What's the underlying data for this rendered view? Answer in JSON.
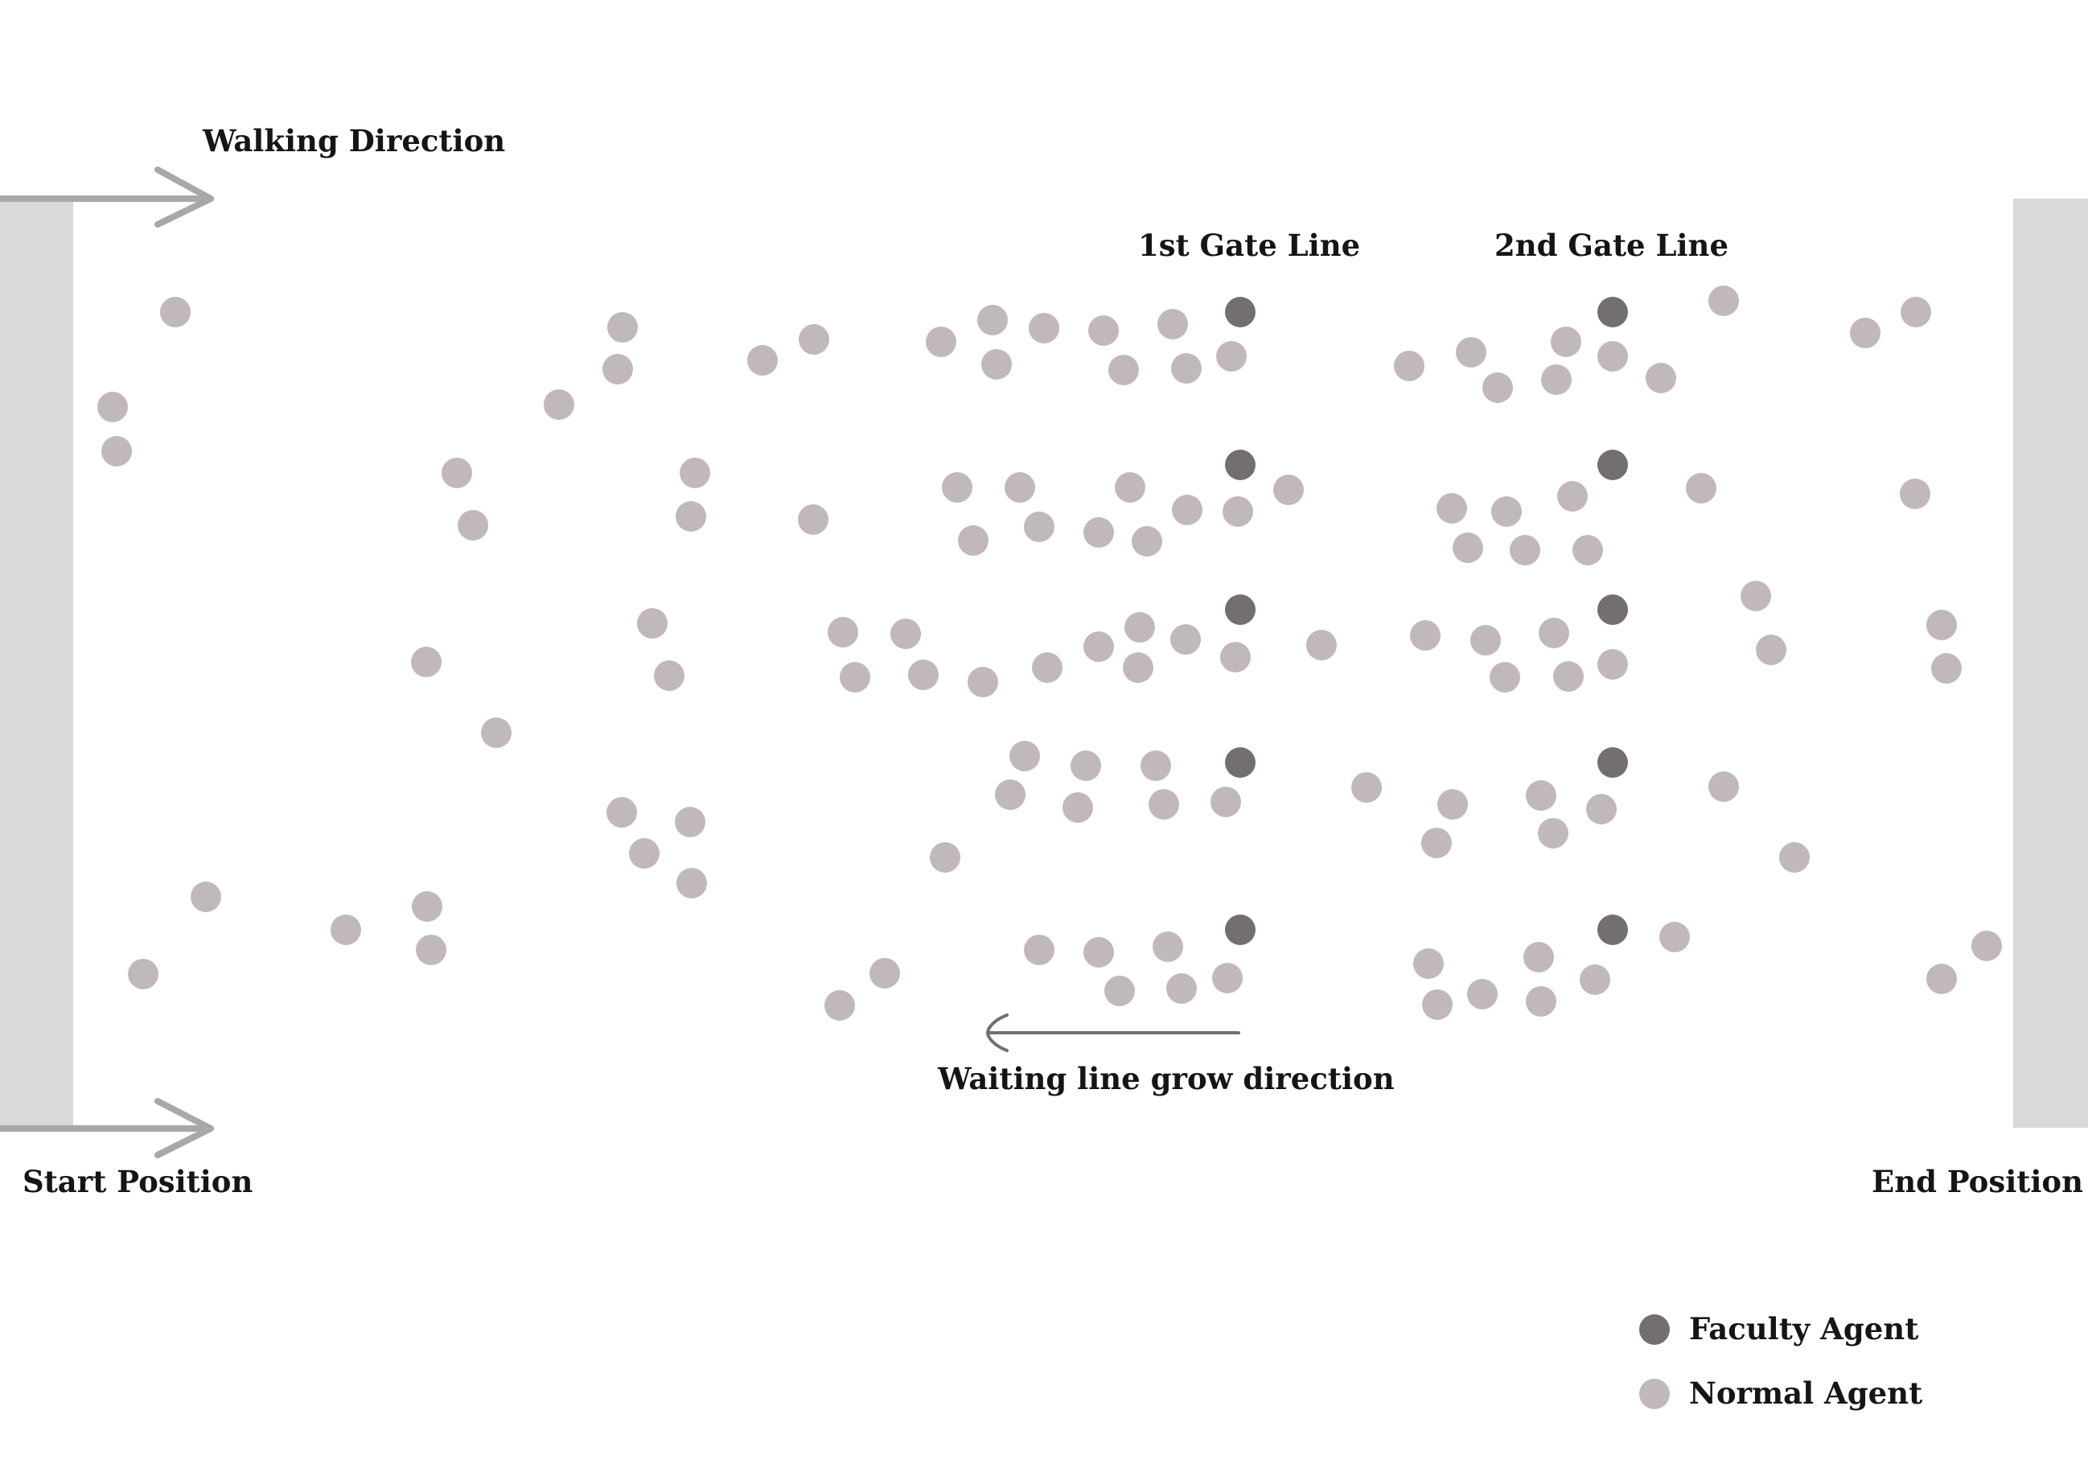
{
  "labels": {
    "walking_direction": "Walking Direction",
    "gate_line_1": "1st Gate Line",
    "gate_line_2": "2nd Gate Line",
    "waiting_line": "Waiting line grow direction",
    "start_position": "Start Position",
    "end_position": "End Position"
  },
  "legend": {
    "faculty": "Faculty Agent",
    "normal": "Normal Agent"
  },
  "colors": {
    "faculty_agent": "#736e70",
    "normal_agent": "#c0b8bb",
    "wall": "#d9d9d9",
    "arrow_gray": "#a8a8a8",
    "arrow_dark": "#6f6f6f",
    "text": "#151515"
  }
}
